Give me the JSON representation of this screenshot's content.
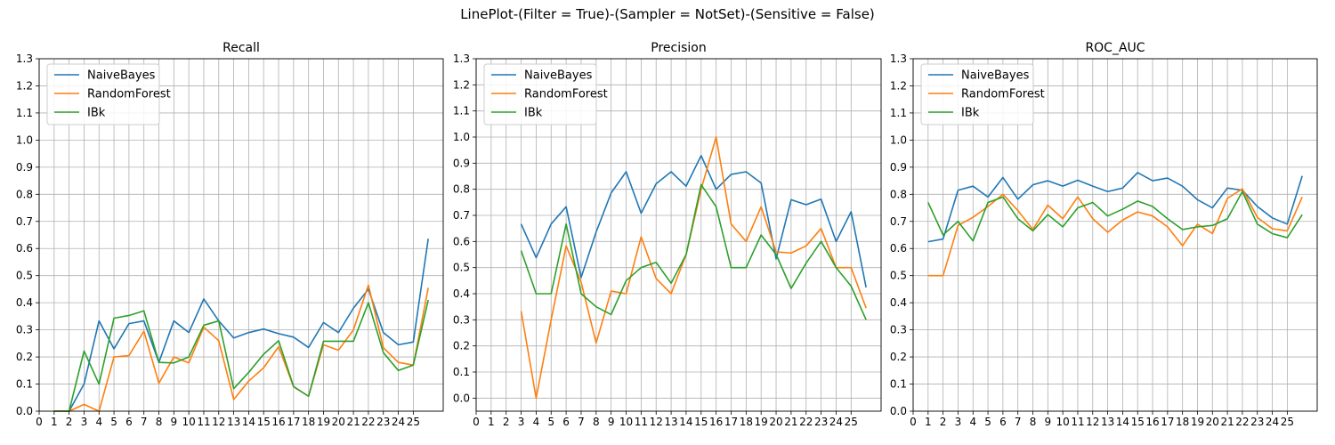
{
  "figure_title": "LinePlot-(Filter = True)-(Sampler = NotSet)-(Sensitive = False)",
  "colors": {
    "NaiveBayes": "#1f77b4",
    "RandomForest": "#ff7f0e",
    "IBk": "#2ca02c",
    "grid": "#b0b0b0",
    "axes": "#000000"
  },
  "chart_data": [
    {
      "type": "line",
      "title": "Recall",
      "xlabel": "",
      "ylabel": "",
      "xlim": [
        0,
        27
      ],
      "ylim": [
        0,
        1.3
      ],
      "xticks": [
        0,
        1,
        2,
        3,
        4,
        5,
        6,
        7,
        8,
        9,
        10,
        11,
        12,
        13,
        14,
        15,
        16,
        17,
        18,
        19,
        20,
        21,
        22,
        23,
        24,
        25
      ],
      "yticks": [
        0.0,
        0.1,
        0.2,
        0.3,
        0.4,
        0.5,
        0.6,
        0.7,
        0.8,
        0.9,
        1.0,
        1.1,
        1.2,
        1.3
      ],
      "grid": true,
      "legend": "upper-left",
      "x": [
        1,
        2,
        3,
        4,
        5,
        6,
        7,
        8,
        9,
        10,
        11,
        12,
        13,
        14,
        15,
        16,
        17,
        18,
        19,
        20,
        21,
        22,
        23,
        24,
        25,
        26
      ],
      "series": [
        {
          "name": "NaiveBayes",
          "values": [
            0.0,
            0.0,
            0.1,
            0.333,
            0.23,
            0.323,
            0.333,
            0.18,
            0.333,
            0.29,
            0.414,
            0.333,
            0.27,
            0.29,
            0.303,
            0.286,
            0.273,
            0.235,
            0.327,
            0.29,
            0.38,
            0.45,
            0.29,
            0.245,
            0.255,
            0.636
          ]
        },
        {
          "name": "RandomForest",
          "values": [
            0.0,
            0.0,
            0.025,
            0.0,
            0.2,
            0.205,
            0.295,
            0.103,
            0.2,
            0.178,
            0.31,
            0.26,
            0.043,
            0.111,
            0.16,
            0.238,
            0.09,
            0.055,
            0.245,
            0.225,
            0.3,
            0.465,
            0.234,
            0.18,
            0.17,
            0.455
          ]
        },
        {
          "name": "IBk",
          "values": [
            0.0,
            0.0,
            0.222,
            0.1,
            0.343,
            0.353,
            0.37,
            0.18,
            0.178,
            0.2,
            0.317,
            0.333,
            0.083,
            0.143,
            0.21,
            0.26,
            0.091,
            0.055,
            0.258,
            0.258,
            0.258,
            0.4,
            0.216,
            0.15,
            0.17,
            0.41
          ]
        }
      ]
    },
    {
      "type": "line",
      "title": "Precision",
      "xlabel": "",
      "ylabel": "",
      "xlim": [
        0,
        27
      ],
      "ylim": [
        -0.05,
        1.3
      ],
      "xticks": [
        0,
        1,
        2,
        3,
        4,
        5,
        6,
        7,
        8,
        9,
        10,
        11,
        12,
        13,
        14,
        15,
        16,
        17,
        18,
        19,
        20,
        21,
        22,
        23,
        24,
        25
      ],
      "yticks": [
        0.0,
        0.1,
        0.2,
        0.3,
        0.4,
        0.5,
        0.6,
        0.7,
        0.8,
        0.9,
        1.0,
        1.1,
        1.2,
        1.3
      ],
      "grid": true,
      "legend": "upper-left",
      "x": [
        3,
        4,
        5,
        6,
        7,
        8,
        9,
        10,
        11,
        12,
        13,
        14,
        15,
        16,
        17,
        18,
        19,
        20,
        21,
        22,
        23,
        24,
        25,
        26
      ],
      "series": [
        {
          "name": "NaiveBayes",
          "values": [
            0.667,
            0.538,
            0.667,
            0.733,
            0.462,
            0.636,
            0.786,
            0.867,
            0.708,
            0.821,
            0.867,
            0.812,
            0.929,
            0.8,
            0.857,
            0.867,
            0.824,
            0.533,
            0.76,
            0.741,
            0.762,
            0.6,
            0.714,
            0.424
          ]
        },
        {
          "name": "RandomForest",
          "values": [
            0.333,
            0.0,
            0.3,
            0.583,
            0.444,
            0.211,
            0.41,
            0.4,
            0.618,
            0.458,
            0.4,
            0.55,
            0.8,
            1.0,
            0.667,
            0.6,
            0.733,
            0.56,
            0.556,
            0.583,
            0.65,
            0.5,
            0.5,
            0.345
          ]
        },
        {
          "name": "IBk",
          "values": [
            0.565,
            0.4,
            0.4,
            0.667,
            0.4,
            0.35,
            0.32,
            0.45,
            0.5,
            0.52,
            0.44,
            0.55,
            0.818,
            0.733,
            0.5,
            0.5,
            0.625,
            0.55,
            0.42,
            0.517,
            0.6,
            0.5,
            0.429,
            0.3
          ]
        }
      ]
    },
    {
      "type": "line",
      "title": "ROC_AUC",
      "xlabel": "",
      "ylabel": "",
      "xlim": [
        0,
        27
      ],
      "ylim": [
        0,
        1.3
      ],
      "xticks": [
        0,
        1,
        2,
        3,
        4,
        5,
        6,
        7,
        8,
        9,
        10,
        11,
        12,
        13,
        14,
        15,
        16,
        17,
        18,
        19,
        20,
        21,
        22,
        23,
        24,
        25
      ],
      "yticks": [
        0.0,
        0.1,
        0.2,
        0.3,
        0.4,
        0.5,
        0.6,
        0.7,
        0.8,
        0.9,
        1.0,
        1.1,
        1.2,
        1.3
      ],
      "grid": true,
      "legend": "upper-left",
      "x": [
        1,
        2,
        3,
        4,
        5,
        6,
        7,
        8,
        9,
        10,
        11,
        12,
        13,
        14,
        15,
        16,
        17,
        18,
        19,
        20,
        21,
        22,
        23,
        24,
        25,
        26
      ],
      "series": [
        {
          "name": "NaiveBayes",
          "values": [
            0.625,
            0.635,
            0.815,
            0.83,
            0.79,
            0.862,
            0.782,
            0.835,
            0.85,
            0.83,
            0.852,
            0.83,
            0.81,
            0.823,
            0.88,
            0.85,
            0.86,
            0.83,
            0.78,
            0.75,
            0.823,
            0.815,
            0.755,
            0.713,
            0.69,
            0.868
          ]
        },
        {
          "name": "RandomForest",
          "values": [
            0.5,
            0.5,
            0.685,
            0.715,
            0.755,
            0.8,
            0.74,
            0.67,
            0.76,
            0.71,
            0.79,
            0.71,
            0.66,
            0.705,
            0.735,
            0.72,
            0.68,
            0.61,
            0.69,
            0.655,
            0.785,
            0.82,
            0.715,
            0.673,
            0.665,
            0.79
          ]
        },
        {
          "name": "IBk",
          "values": [
            0.77,
            0.65,
            0.7,
            0.628,
            0.77,
            0.79,
            0.71,
            0.665,
            0.725,
            0.68,
            0.75,
            0.77,
            0.72,
            0.745,
            0.775,
            0.755,
            0.71,
            0.67,
            0.68,
            0.685,
            0.71,
            0.81,
            0.69,
            0.655,
            0.64,
            0.725
          ]
        }
      ]
    }
  ]
}
